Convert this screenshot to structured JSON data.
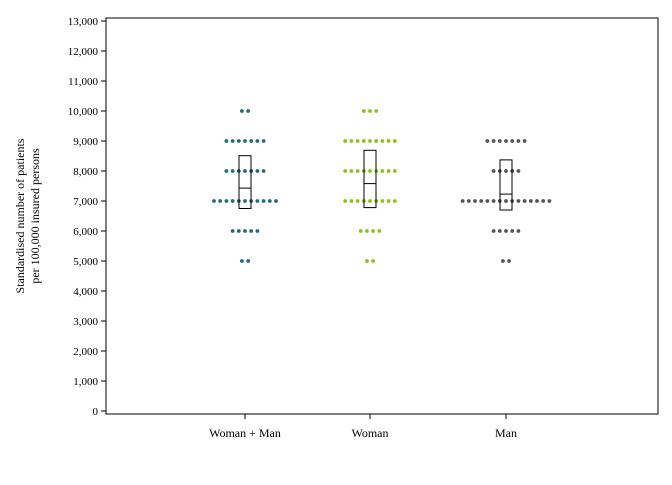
{
  "chart_data": {
    "type": "scatter",
    "title": "",
    "xlabel": "",
    "ylabel_lines": [
      "Standardised number of patients",
      "per 100,000 insured persons"
    ],
    "ylim": [
      0,
      13000
    ],
    "yticks": [
      0,
      1000,
      2000,
      3000,
      4000,
      5000,
      6000,
      7000,
      8000,
      9000,
      10000,
      11000,
      12000,
      13000
    ],
    "ytick_labels": [
      "0",
      "1,000",
      "2,000",
      "3,000",
      "4,000",
      "5,000",
      "6,000",
      "7,000",
      "8,000",
      "9,000",
      "10,000",
      "11,000",
      "12,000",
      "13,000"
    ],
    "grid": false,
    "legend": "none",
    "categories": [
      "Woman + Man",
      "Woman",
      "Man"
    ],
    "series": [
      {
        "category": "Woman + Man",
        "color": "#1f6e78",
        "dots": [
          {
            "y": 10000,
            "count": 2
          },
          {
            "y": 9000,
            "count": 7
          },
          {
            "y": 8000,
            "count": 7
          },
          {
            "y": 7000,
            "count": 11
          },
          {
            "y": 6000,
            "count": 5
          },
          {
            "y": 5000,
            "count": 2
          }
        ],
        "box": {
          "q1": 6750,
          "median": 7430,
          "q3": 8510
        }
      },
      {
        "category": "Woman",
        "color": "#8cc01e",
        "dots": [
          {
            "y": 10000,
            "count": 3
          },
          {
            "y": 9000,
            "count": 9
          },
          {
            "y": 8000,
            "count": 9
          },
          {
            "y": 7000,
            "count": 9
          },
          {
            "y": 6000,
            "count": 4
          },
          {
            "y": 5000,
            "count": 2
          }
        ],
        "box": {
          "q1": 6780,
          "median": 7580,
          "q3": 8690
        }
      },
      {
        "category": "Man",
        "color": "#555555",
        "dots": [
          {
            "y": 9000,
            "count": 7
          },
          {
            "y": 8000,
            "count": 5
          },
          {
            "y": 7000,
            "count": 15
          },
          {
            "y": 6000,
            "count": 5
          },
          {
            "y": 5000,
            "count": 2
          }
        ],
        "box": {
          "q1": 6700,
          "median": 7230,
          "q3": 8370
        }
      }
    ]
  }
}
